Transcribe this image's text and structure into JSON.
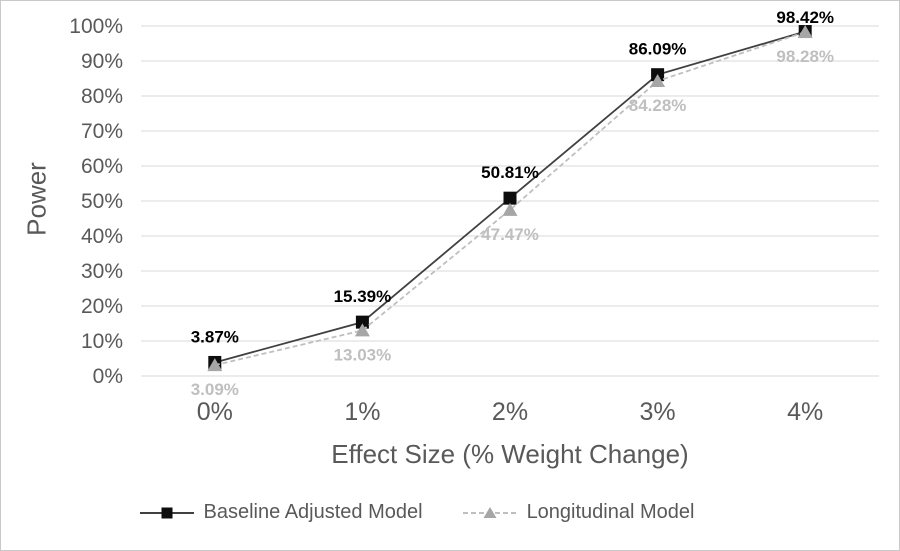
{
  "chart_data": {
    "type": "line",
    "title": "",
    "x": [
      "0%",
      "1%",
      "2%",
      "3%",
      "4%"
    ],
    "series": [
      {
        "id": "baseline-adjusted-model",
        "name": "Baseline Adjusted Model",
        "values": [
          3.87,
          15.39,
          50.81,
          86.09,
          98.42
        ],
        "labels": [
          "3.87%",
          "15.39%",
          "50.81%",
          "86.09%",
          "98.42%"
        ],
        "line_style": "solid",
        "dash": "",
        "line_color": "#404040",
        "marker": "square",
        "marker_color": "#0d0d0d",
        "label_color": "#000000",
        "label_pos": "above"
      },
      {
        "id": "longitudinal-model",
        "name": "Longitudinal Model",
        "values": [
          3.09,
          13.03,
          47.47,
          84.28,
          98.28
        ],
        "labels": [
          "3.09%",
          "13.03%",
          "47.47%",
          "84.28%",
          "98.28%"
        ],
        "line_style": "dashed",
        "dash": "5 3",
        "line_color": "#bfbfbf",
        "marker": "triangle",
        "marker_color": "#a6a6a6",
        "label_color": "#bfbfbf",
        "label_pos": "below"
      }
    ],
    "xlabel": "Effect Size (% Weight Change)",
    "ylabel": "Power",
    "ylim": [
      0,
      100
    ],
    "ytick_step": 10,
    "yticks": [
      "0%",
      "10%",
      "20%",
      "30%",
      "40%",
      "50%",
      "60%",
      "70%",
      "80%",
      "90%",
      "100%"
    ],
    "grid": "horizontal-only",
    "legend_position": "bottom",
    "colors": {
      "gridline": "#d9d9d9",
      "tick_label": "#595959",
      "axis_title": "#595959",
      "legend_text": "#595959",
      "frame_border": "#c9c9c9",
      "background": "#ffffff"
    }
  }
}
